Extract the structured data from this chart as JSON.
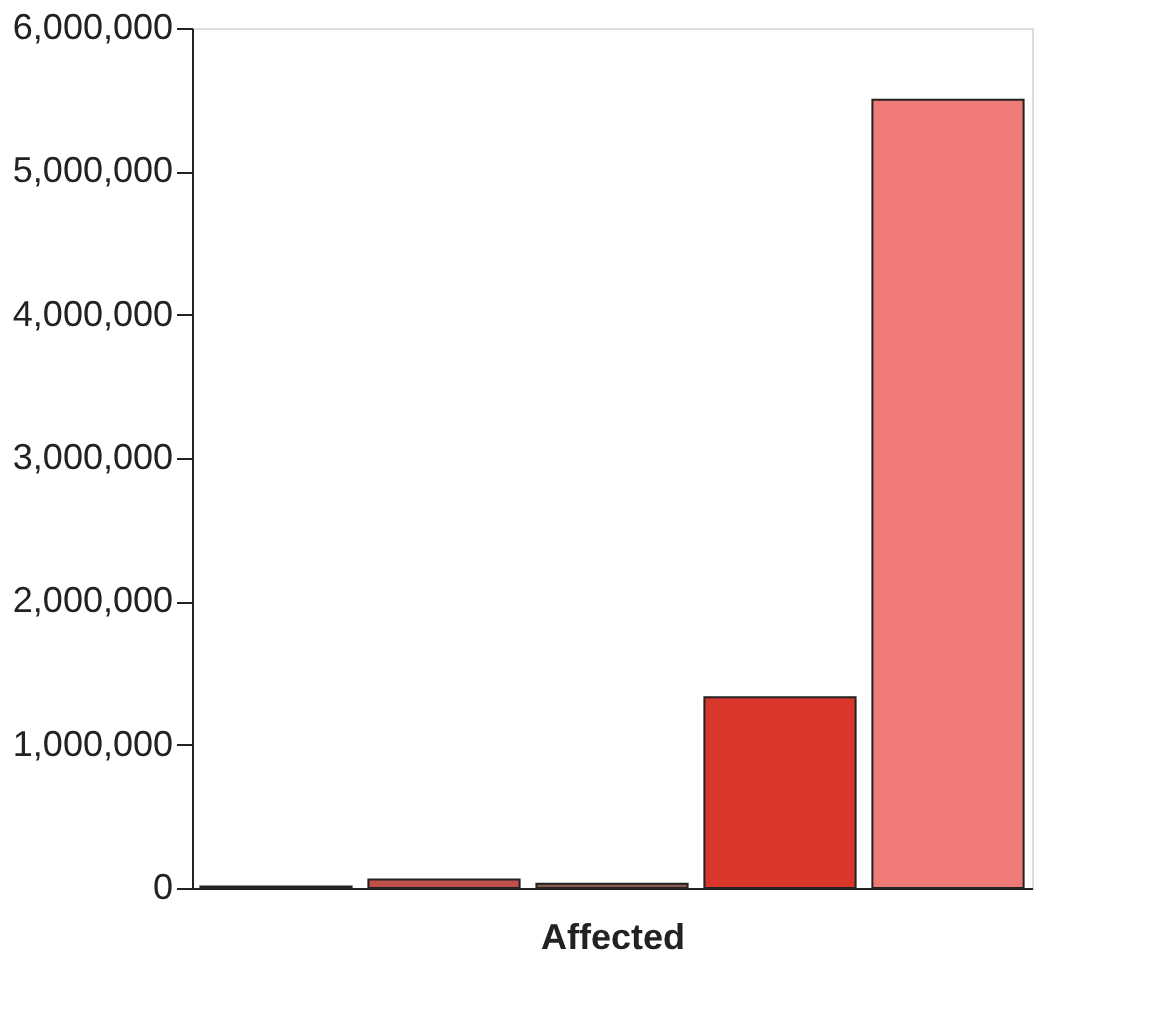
{
  "chart_data": {
    "type": "bar",
    "xlabel": "Affected",
    "categories": [
      null,
      null,
      null,
      null,
      null
    ],
    "values": [
      10000,
      60000,
      30000,
      1330000,
      5500000
    ],
    "colors": [
      "#8a3a30",
      "#c0504a",
      "#8a5a50",
      "#d9362c",
      "#f07a78"
    ],
    "ylim": [
      0,
      6000000
    ],
    "yticks": [
      0,
      {
        "value": 1000000,
        "label": "1,000,000"
      },
      {
        "value": 2000000,
        "label": "2,000,000"
      },
      {
        "value": 3000000,
        "label": "3,000,000"
      },
      {
        "value": 4000000,
        "label": "4,000,000"
      },
      {
        "value": 5000000,
        "label": "5,000,000"
      },
      {
        "value": 6000000,
        "label": "6,000,000"
      }
    ],
    "grid": false
  }
}
